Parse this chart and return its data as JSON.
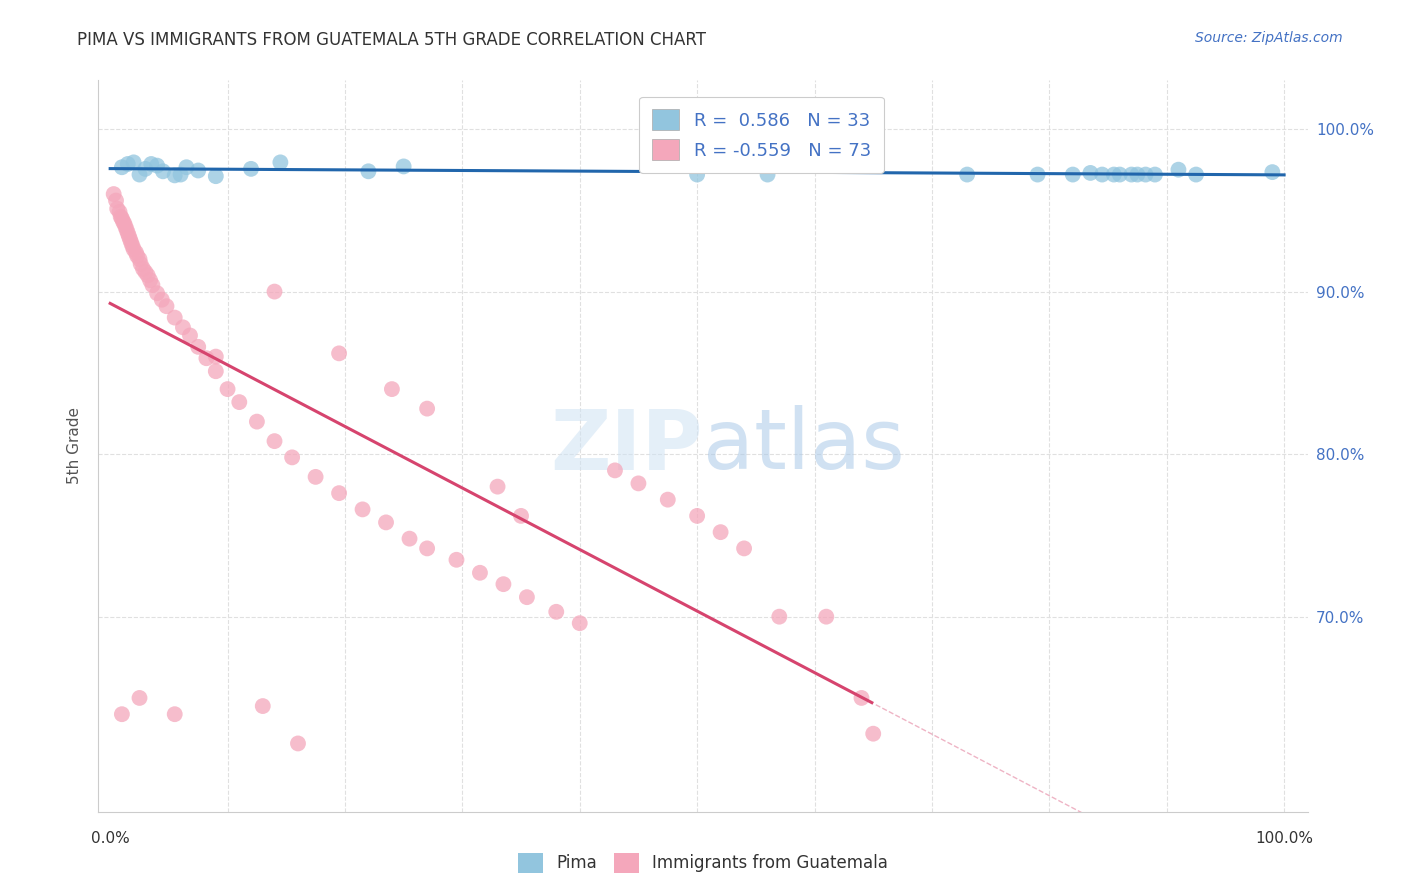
{
  "title": "PIMA VS IMMIGRANTS FROM GUATEMALA 5TH GRADE CORRELATION CHART",
  "source": "Source: ZipAtlas.com",
  "ylabel": "5th Grade",
  "xlim": [
    0.0,
    1.0
  ],
  "ylim": [
    0.58,
    1.03
  ],
  "legend_blue_label": "R =  0.586   N = 33",
  "legend_pink_label": "R = -0.559   N = 73",
  "blue_color": "#92c5de",
  "pink_color": "#f4a7bb",
  "blue_line_color": "#2166ac",
  "pink_line_color": "#d6446e",
  "blue_points_x": [
    0.01,
    0.015,
    0.02,
    0.025,
    0.03,
    0.035,
    0.04,
    0.045,
    0.055,
    0.06,
    0.065,
    0.075,
    0.09,
    0.12,
    0.145,
    0.22,
    0.25,
    0.5,
    0.56,
    0.73,
    0.79,
    0.82,
    0.835,
    0.845,
    0.855,
    0.86,
    0.87,
    0.875,
    0.882,
    0.89,
    0.91,
    0.925,
    0.99
  ],
  "blue_points_y": [
    0.9765,
    0.9785,
    0.9795,
    0.972,
    0.9755,
    0.9785,
    0.9775,
    0.974,
    0.9715,
    0.972,
    0.9765,
    0.9745,
    0.971,
    0.9755,
    0.9795,
    0.974,
    0.977,
    0.972,
    0.972,
    0.972,
    0.972,
    0.972,
    0.973,
    0.972,
    0.972,
    0.972,
    0.972,
    0.972,
    0.972,
    0.972,
    0.975,
    0.972,
    0.9735
  ],
  "pink_points_x": [
    0.003,
    0.005,
    0.006,
    0.008,
    0.009,
    0.01,
    0.011,
    0.012,
    0.013,
    0.014,
    0.015,
    0.016,
    0.017,
    0.018,
    0.019,
    0.02,
    0.022,
    0.023,
    0.025,
    0.026,
    0.028,
    0.03,
    0.032,
    0.034,
    0.036,
    0.04,
    0.044,
    0.048,
    0.055,
    0.062,
    0.068,
    0.075,
    0.082,
    0.09,
    0.1,
    0.11,
    0.125,
    0.14,
    0.155,
    0.175,
    0.195,
    0.215,
    0.235,
    0.255,
    0.27,
    0.295,
    0.315,
    0.335,
    0.355,
    0.38,
    0.4,
    0.43,
    0.45,
    0.475,
    0.5,
    0.52,
    0.54,
    0.57,
    0.61,
    0.64,
    0.65,
    0.33,
    0.35,
    0.27,
    0.195,
    0.09,
    0.24,
    0.16,
    0.13,
    0.14,
    0.055,
    0.025,
    0.01
  ],
  "pink_points_y": [
    0.96,
    0.956,
    0.951,
    0.949,
    0.946,
    0.945,
    0.943,
    0.942,
    0.94,
    0.938,
    0.936,
    0.934,
    0.932,
    0.93,
    0.928,
    0.926,
    0.924,
    0.922,
    0.92,
    0.917,
    0.914,
    0.912,
    0.91,
    0.907,
    0.904,
    0.899,
    0.895,
    0.891,
    0.884,
    0.878,
    0.873,
    0.866,
    0.859,
    0.851,
    0.84,
    0.832,
    0.82,
    0.808,
    0.798,
    0.786,
    0.776,
    0.766,
    0.758,
    0.748,
    0.742,
    0.735,
    0.727,
    0.72,
    0.712,
    0.703,
    0.696,
    0.79,
    0.782,
    0.772,
    0.762,
    0.752,
    0.742,
    0.7,
    0.7,
    0.65,
    0.628,
    0.78,
    0.762,
    0.828,
    0.862,
    0.86,
    0.84,
    0.622,
    0.645,
    0.9,
    0.64,
    0.65,
    0.64
  ]
}
